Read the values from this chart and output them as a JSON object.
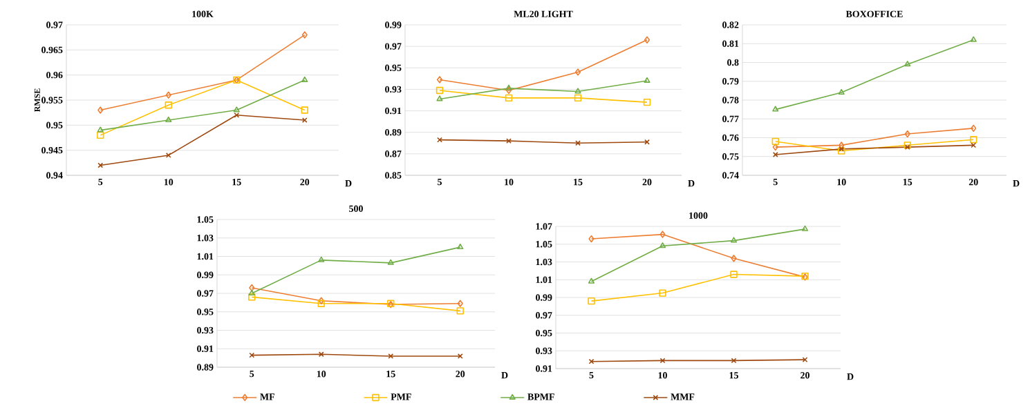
{
  "chart_data": [
    {
      "type": "line",
      "title": "100K",
      "xlabel": "D",
      "ylabel": "RMSE",
      "categories": [
        "5",
        "10",
        "15",
        "20"
      ],
      "ylim": [
        0.94,
        0.97
      ],
      "yticks": [
        0.94,
        0.945,
        0.95,
        0.955,
        0.96,
        0.965,
        0.97
      ],
      "grid": "y",
      "legend": "bottom",
      "series": [
        {
          "name": "MF",
          "color": "#ed7d31",
          "marker": "diamond",
          "values": [
            0.953,
            0.956,
            0.959,
            0.968
          ]
        },
        {
          "name": "PMF",
          "color": "#ffc000",
          "marker": "square",
          "values": [
            0.948,
            0.954,
            0.959,
            0.953
          ]
        },
        {
          "name": "BPMF",
          "color": "#70ad47",
          "marker": "triangle",
          "values": [
            0.949,
            0.951,
            0.953,
            0.959
          ]
        },
        {
          "name": "MMF",
          "color": "#9e480e",
          "marker": "cross",
          "values": [
            0.942,
            0.944,
            0.952,
            0.951
          ]
        }
      ]
    },
    {
      "type": "line",
      "title": "ML20 LIGHT",
      "xlabel": "D",
      "categories": [
        "5",
        "10",
        "15",
        "20"
      ],
      "ylim": [
        0.85,
        0.99
      ],
      "yticks": [
        0.85,
        0.87,
        0.89,
        0.91,
        0.93,
        0.95,
        0.97,
        0.99
      ],
      "grid": "y",
      "series": [
        {
          "color": "#ed7d31",
          "marker": "diamond",
          "values": [
            0.939,
            0.929,
            0.946,
            0.976
          ]
        },
        {
          "color": "#ffc000",
          "marker": "square",
          "values": [
            0.929,
            0.922,
            0.922,
            0.918
          ]
        },
        {
          "color": "#70ad47",
          "marker": "triangle",
          "values": [
            0.921,
            0.931,
            0.928,
            0.938
          ]
        },
        {
          "color": "#9e480e",
          "marker": "cross",
          "values": [
            0.883,
            0.882,
            0.88,
            0.881
          ]
        }
      ]
    },
    {
      "type": "line",
      "title": "BOXOFFICE",
      "xlabel": "D",
      "categories": [
        "5",
        "10",
        "15",
        "20"
      ],
      "ylim": [
        0.74,
        0.82
      ],
      "yticks": [
        0.74,
        0.75,
        0.76,
        0.77,
        0.78,
        0.79,
        0.8,
        0.81,
        0.82
      ],
      "grid": "y",
      "series": [
        {
          "color": "#ed7d31",
          "marker": "diamond",
          "values": [
            0.755,
            0.756,
            0.762,
            0.765
          ]
        },
        {
          "color": "#ffc000",
          "marker": "square",
          "values": [
            0.758,
            0.753,
            0.756,
            0.759
          ]
        },
        {
          "color": "#70ad47",
          "marker": "triangle",
          "values": [
            0.775,
            0.784,
            0.799,
            0.812
          ]
        },
        {
          "color": "#9e480e",
          "marker": "cross",
          "values": [
            0.751,
            0.754,
            0.755,
            0.756
          ]
        }
      ]
    },
    {
      "type": "line",
      "title": "500",
      "xlabel": "D",
      "categories": [
        "5",
        "10",
        "15",
        "20"
      ],
      "ylim": [
        0.89,
        1.05
      ],
      "yticks": [
        0.89,
        0.91,
        0.93,
        0.95,
        0.97,
        0.99,
        1.01,
        1.03,
        1.05
      ],
      "grid": "y",
      "series": [
        {
          "color": "#ed7d31",
          "marker": "diamond",
          "values": [
            0.976,
            0.962,
            0.958,
            0.959
          ]
        },
        {
          "color": "#ffc000",
          "marker": "square",
          "values": [
            0.966,
            0.959,
            0.959,
            0.951
          ]
        },
        {
          "color": "#70ad47",
          "marker": "triangle",
          "values": [
            0.97,
            1.006,
            1.003,
            1.02
          ]
        },
        {
          "color": "#9e480e",
          "marker": "cross",
          "values": [
            0.903,
            0.904,
            0.902,
            0.902
          ]
        }
      ]
    },
    {
      "type": "line",
      "title": "1000",
      "xlabel": "D",
      "categories": [
        "5",
        "10",
        "15",
        "20"
      ],
      "ylim": [
        0.91,
        1.07
      ],
      "yticks": [
        0.91,
        0.93,
        0.95,
        0.97,
        0.99,
        1.01,
        1.03,
        1.05,
        1.07
      ],
      "grid": "y",
      "series": [
        {
          "color": "#ed7d31",
          "marker": "diamond",
          "values": [
            1.056,
            1.061,
            1.034,
            1.013
          ]
        },
        {
          "color": "#ffc000",
          "marker": "square",
          "values": [
            0.986,
            0.995,
            1.016,
            1.014
          ]
        },
        {
          "color": "#70ad47",
          "marker": "triangle",
          "values": [
            1.008,
            1.048,
            1.054,
            1.067
          ]
        },
        {
          "color": "#9e480e",
          "marker": "cross",
          "values": [
            0.918,
            0.919,
            0.919,
            0.92
          ]
        }
      ]
    }
  ]
}
